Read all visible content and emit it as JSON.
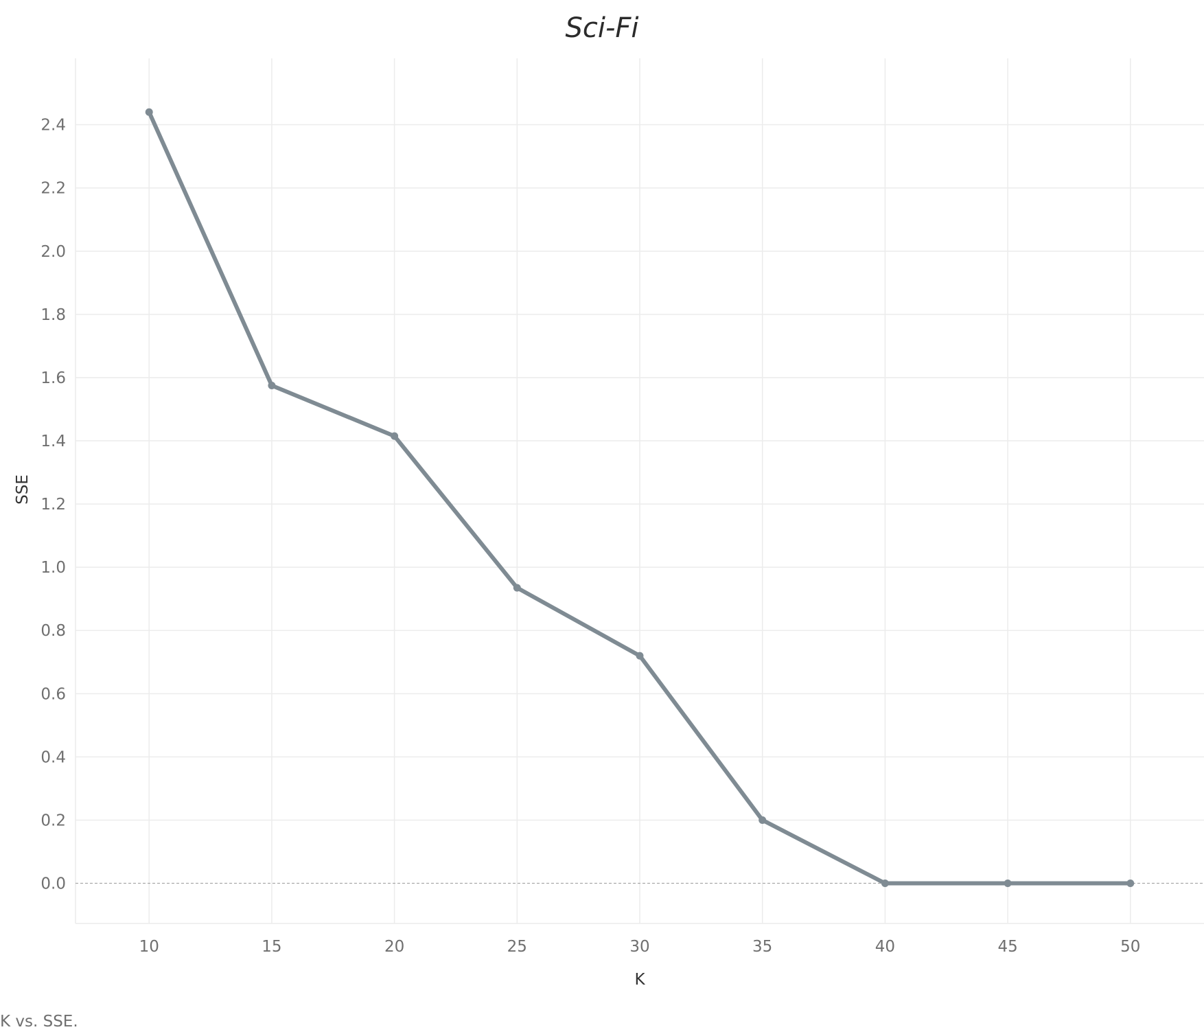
{
  "chart_data": {
    "type": "line",
    "title": "Sci-Fi",
    "xlabel": "K",
    "ylabel": "SSE",
    "x": [
      10,
      15,
      20,
      25,
      30,
      35,
      40,
      45,
      50
    ],
    "series": [
      {
        "values": [
          2.44,
          1.575,
          1.415,
          0.935,
          0.72,
          0.2,
          0.0,
          0.0,
          0.0
        ]
      }
    ],
    "xticks": [
      "10",
      "15",
      "20",
      "25",
      "30",
      "35",
      "40",
      "45",
      "50"
    ],
    "yticks": [
      "0.0",
      "0.2",
      "0.4",
      "0.6",
      "0.8",
      "1.0",
      "1.2",
      "1.4",
      "1.6",
      "1.8",
      "2.0",
      "2.2",
      "2.4"
    ],
    "xlim": [
      7,
      53
    ],
    "ylim": [
      -0.127,
      2.61
    ],
    "grid": true,
    "zero_line": "dashed",
    "line_color": "#7f8b93",
    "grid_color": "#ececec"
  },
  "caption": "K vs. SSE."
}
